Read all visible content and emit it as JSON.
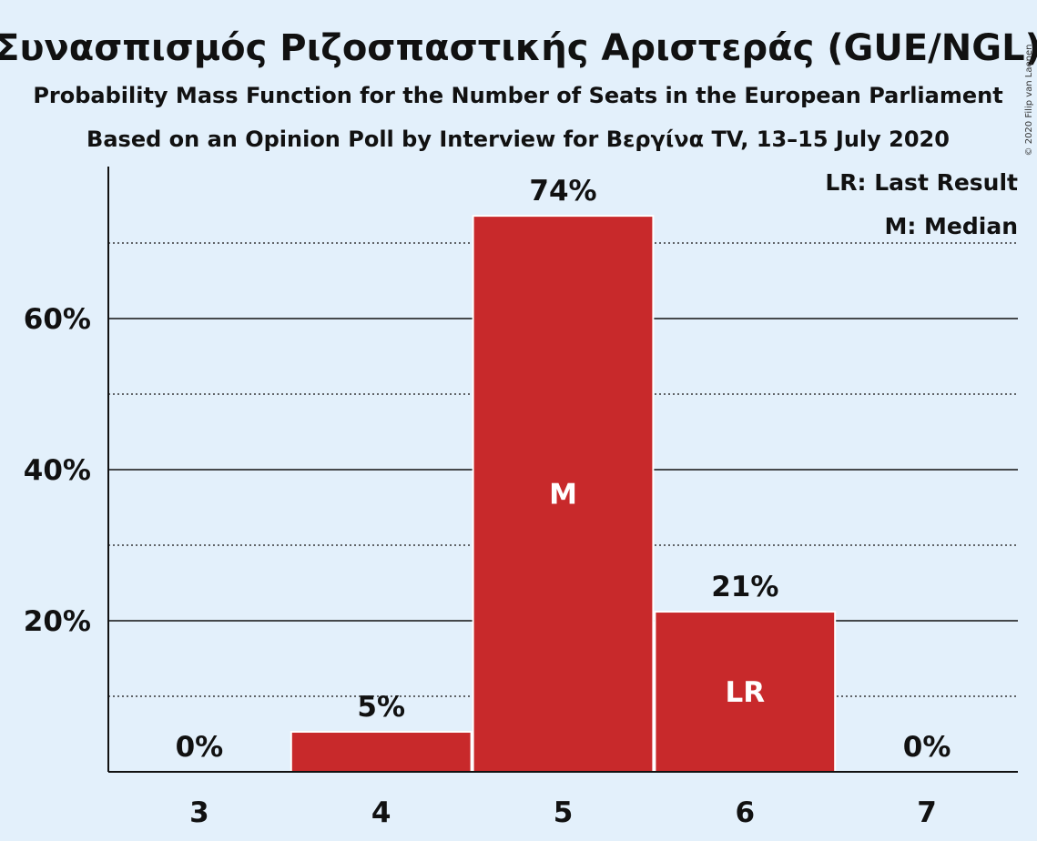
{
  "colors": {
    "background": "#E3F0FB",
    "bar": "#C8292B",
    "bar_stroke": "#FFFFFF",
    "text": "#111111",
    "inbar_text": "#FFFFFF"
  },
  "chart_data": {
    "type": "bar",
    "title": "Συνασπισμός Ριζοσπαστικής Αριστεράς (GUE/NGL)",
    "subtitle": "Probability Mass Function for the Number of Seats in the European Parliament",
    "subtitle2": "Based on an Opinion Poll by Interview for Βεργίνα TV, 13–15 July 2020",
    "copyright": "© 2020 Filip van Laenen",
    "categories": [
      "3",
      "4",
      "5",
      "6",
      "7"
    ],
    "values": [
      0,
      5.3,
      73.6,
      21.2,
      0
    ],
    "data_labels": [
      "0%",
      "5%",
      "74%",
      "21%",
      "0%"
    ],
    "bar_markers": [
      "",
      "",
      "M",
      "LR",
      ""
    ],
    "ylim": [
      0,
      80
    ],
    "y_major_ticks": [
      20,
      40,
      60
    ],
    "y_major_tick_labels": [
      "20%",
      "40%",
      "60%"
    ],
    "y_minor_gridlines": [
      10,
      30,
      50,
      70
    ],
    "legend": {
      "position": "top-right",
      "entries": [
        "LR: Last Result",
        "M: Median"
      ]
    },
    "xlabel": "",
    "ylabel": ""
  }
}
